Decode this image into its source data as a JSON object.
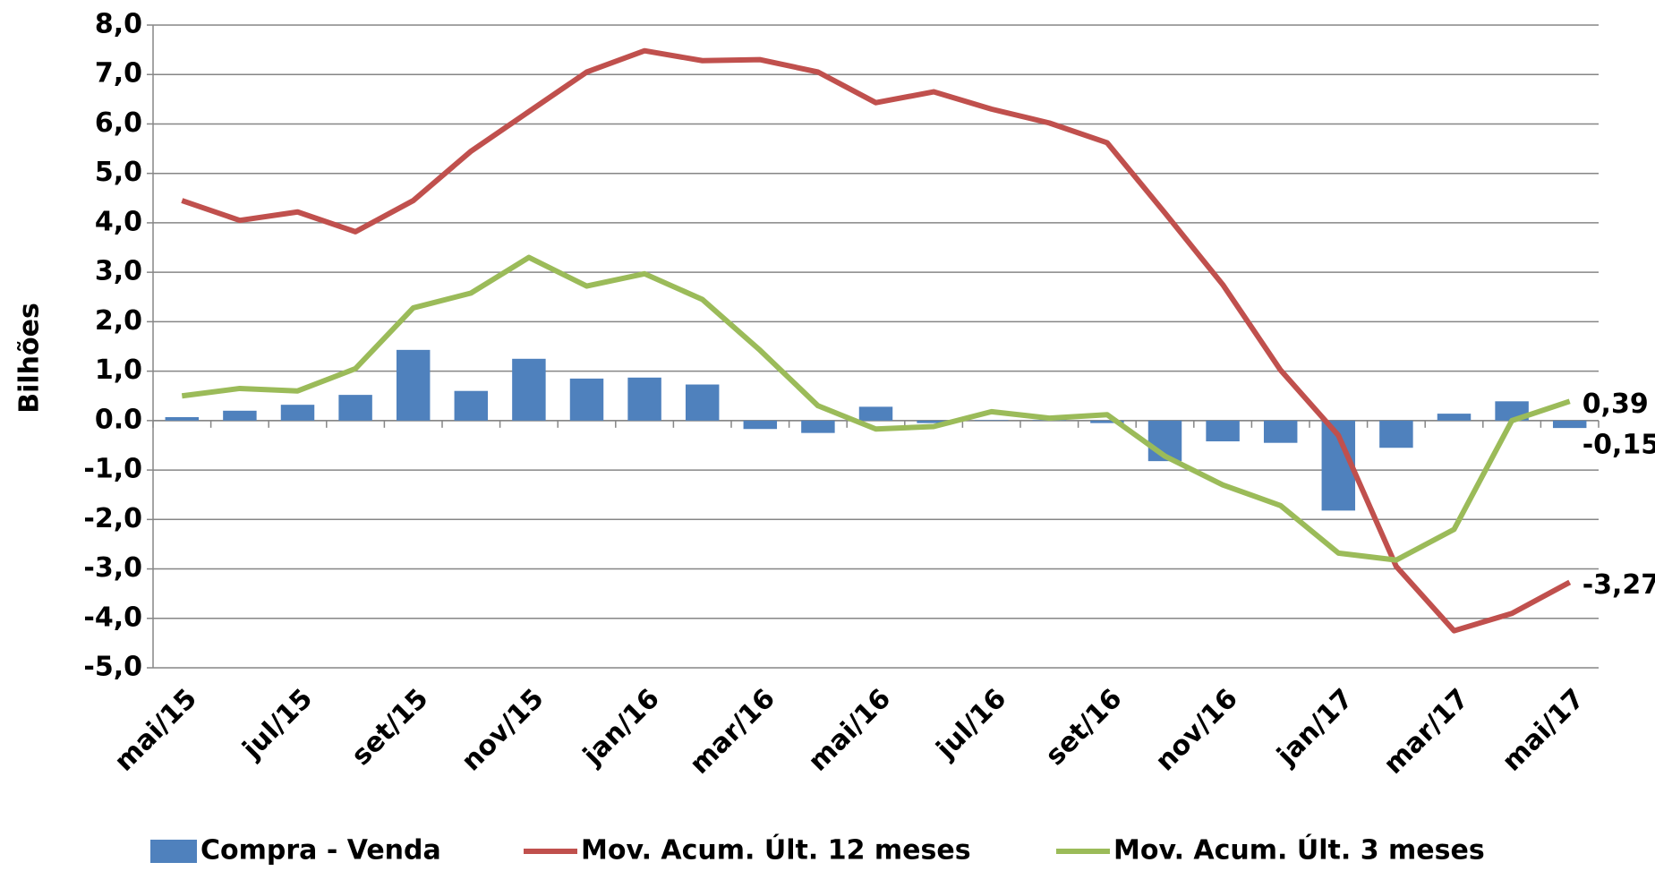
{
  "chart_data": {
    "type": "bar",
    "y_label": "Bilhões",
    "categories": [
      "mai/15",
      null,
      "jul/15",
      null,
      "set/15",
      null,
      "nov/15",
      null,
      "jan/16",
      null,
      "mar/16",
      null,
      "mai/16",
      null,
      "jul/16",
      null,
      "set/16",
      null,
      "nov/16",
      null,
      "jan/17",
      null,
      "mar/17",
      null,
      "mai/17"
    ],
    "series": [
      {
        "name": "Compra - Venda",
        "type": "bar",
        "color": "#4f81bd",
        "label_color": "#4f81bd",
        "values": [
          0.07,
          0.2,
          0.32,
          0.52,
          1.43,
          0.6,
          1.25,
          0.85,
          0.87,
          0.73,
          -0.17,
          -0.25,
          0.28,
          -0.05,
          0.01,
          0.01,
          -0.05,
          -0.82,
          -0.42,
          -0.45,
          -1.82,
          -0.55,
          0.14,
          0.39,
          -0.15
        ],
        "value_labels": [
          null,
          null,
          null,
          null,
          null,
          null,
          null,
          null,
          null,
          null,
          null,
          null,
          null,
          null,
          null,
          null,
          null,
          null,
          null,
          null,
          null,
          null,
          null,
          null,
          "-0,15"
        ]
      },
      {
        "name": "Mov. Acum. Últ. 12 meses",
        "type": "line",
        "color": "#c0504d",
        "label_color": "#c00000",
        "values": [
          4.45,
          4.05,
          4.22,
          3.82,
          4.45,
          5.45,
          6.25,
          7.05,
          7.48,
          7.28,
          7.3,
          7.05,
          6.43,
          6.65,
          6.3,
          6.02,
          5.62,
          4.2,
          2.75,
          1.02,
          -0.3,
          -2.95,
          -4.25,
          -3.9,
          -3.27
        ],
        "value_labels": [
          null,
          null,
          null,
          null,
          null,
          null,
          null,
          null,
          null,
          null,
          null,
          null,
          null,
          null,
          null,
          null,
          null,
          null,
          null,
          null,
          null,
          null,
          null,
          null,
          "-3,27"
        ]
      },
      {
        "name": "Mov. Acum. Últ. 3 meses",
        "type": "line",
        "color": "#9bbb59",
        "label_color": "#77933c",
        "values": [
          0.5,
          0.65,
          0.6,
          1.05,
          2.28,
          2.58,
          3.3,
          2.72,
          2.97,
          2.45,
          1.42,
          0.3,
          -0.17,
          -0.12,
          0.18,
          0.05,
          0.12,
          -0.72,
          -1.3,
          -1.72,
          -2.68,
          -2.82,
          -2.2,
          0.0,
          0.39
        ],
        "value_labels": [
          null,
          null,
          null,
          null,
          null,
          null,
          null,
          null,
          null,
          null,
          null,
          null,
          null,
          null,
          null,
          null,
          null,
          null,
          null,
          null,
          null,
          null,
          null,
          null,
          "0,39"
        ]
      }
    ],
    "ylim": [
      -5,
      8
    ],
    "yticks": [
      {
        "value": -5,
        "label": "-5,0"
      },
      {
        "value": -4,
        "label": "-4,0"
      },
      {
        "value": -3,
        "label": "-3,0"
      },
      {
        "value": -2,
        "label": "-2,0"
      },
      {
        "value": -1,
        "label": "-1,0"
      },
      {
        "value": 0,
        "label": "0.0"
      },
      {
        "value": 1,
        "label": "1,0"
      },
      {
        "value": 2,
        "label": "2,0"
      },
      {
        "value": 3,
        "label": "3,0"
      },
      {
        "value": 4,
        "label": "4,0"
      },
      {
        "value": 5,
        "label": "5,0"
      },
      {
        "value": 6,
        "label": "6,0"
      },
      {
        "value": 7,
        "label": "7,0"
      },
      {
        "value": 8,
        "label": "8,0"
      }
    ],
    "grid": true,
    "legend": "bottom"
  }
}
